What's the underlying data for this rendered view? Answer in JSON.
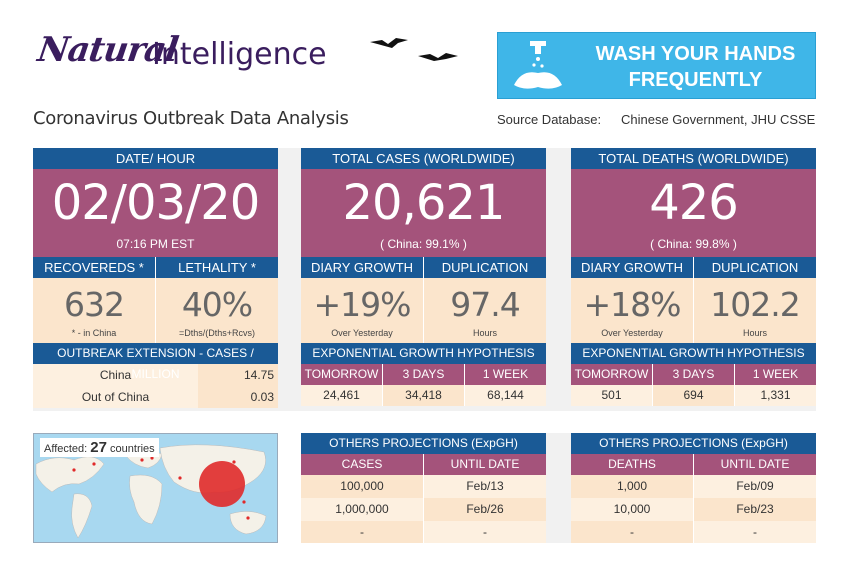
{
  "header": {
    "logo_script": "Natural",
    "logo_word": "Intelligence",
    "banner_line1": "WASH YOUR HANDS",
    "banner_line2": "FREQUENTLY",
    "subtitle": "Coronavirus Outbreak Data Analysis",
    "source_label": "Source Database:",
    "source_value": "Chinese Government, JHU CSSE"
  },
  "date_panel": {
    "header": "DATE/ HOUR",
    "date": "02/03/20",
    "time": "07:16 PM EST",
    "col1_header": "RECOVEREDS *",
    "col2_header": "LETHALITY *",
    "recovered": "632",
    "recovered_note": "* - in China",
    "lethality": "40%",
    "lethality_note": "=Dths/(Dths+Rcvs)",
    "ext_header": "OUTBREAK EXTENSION - CASES / MILLION",
    "ext_rows": [
      {
        "label": "China",
        "value": "14.75"
      },
      {
        "label": "Out of China",
        "value": "0.03"
      }
    ],
    "map_label": "Affected:",
    "map_count": "27",
    "map_suffix": "countries"
  },
  "cases_panel": {
    "header": "TOTAL CASES (WORLDWIDE)",
    "total": "20,621",
    "china_share": "( China: 99.1% )",
    "col1_header": "DIARY GROWTH",
    "col2_header": "DUPLICATION",
    "growth": "+19%",
    "growth_note": "Over Yesterday",
    "duplication": "97.4",
    "duplication_note": "Hours",
    "exp_header": "EXPONENTIAL GROWTH HYPOTHESIS",
    "exp_cols": [
      "TOMORROW",
      "3 DAYS",
      "1 WEEK"
    ],
    "exp_vals": [
      "24,461",
      "34,418",
      "68,144"
    ],
    "proj_header": "OTHERS PROJECTIONS (ExpGH)",
    "proj_cols": [
      "CASES",
      "UNTIL DATE"
    ],
    "proj_rows": [
      [
        "100,000",
        "Feb/13"
      ],
      [
        "1,000,000",
        "Feb/26"
      ],
      [
        "-",
        "-"
      ]
    ]
  },
  "deaths_panel": {
    "header": "TOTAL DEATHS (WORLDWIDE)",
    "total": "426",
    "china_share": "( China: 99.8% )",
    "col1_header": "DIARY GROWTH",
    "col2_header": "DUPLICATION",
    "growth": "+18%",
    "growth_note": "Over Yesterday",
    "duplication": "102.2",
    "duplication_note": "Hours",
    "exp_header": "EXPONENTIAL GROWTH HYPOTHESIS",
    "exp_cols": [
      "TOMORROW",
      "3 DAYS",
      "1 WEEK"
    ],
    "exp_vals": [
      "501",
      "694",
      "1,331"
    ],
    "proj_header": "OTHERS PROJECTIONS (ExpGH)",
    "proj_cols": [
      "DEATHS",
      "UNTIL DATE"
    ],
    "proj_rows": [
      [
        "1,000",
        "Feb/09"
      ],
      [
        "10,000",
        "Feb/23"
      ],
      [
        "-",
        "-"
      ]
    ]
  },
  "colors": {
    "header_blue": "#1a5a96",
    "accent_magenta": "#a4537b",
    "cell_peach": "#fbe5cc",
    "banner_cyan": "#3fb6e8"
  }
}
